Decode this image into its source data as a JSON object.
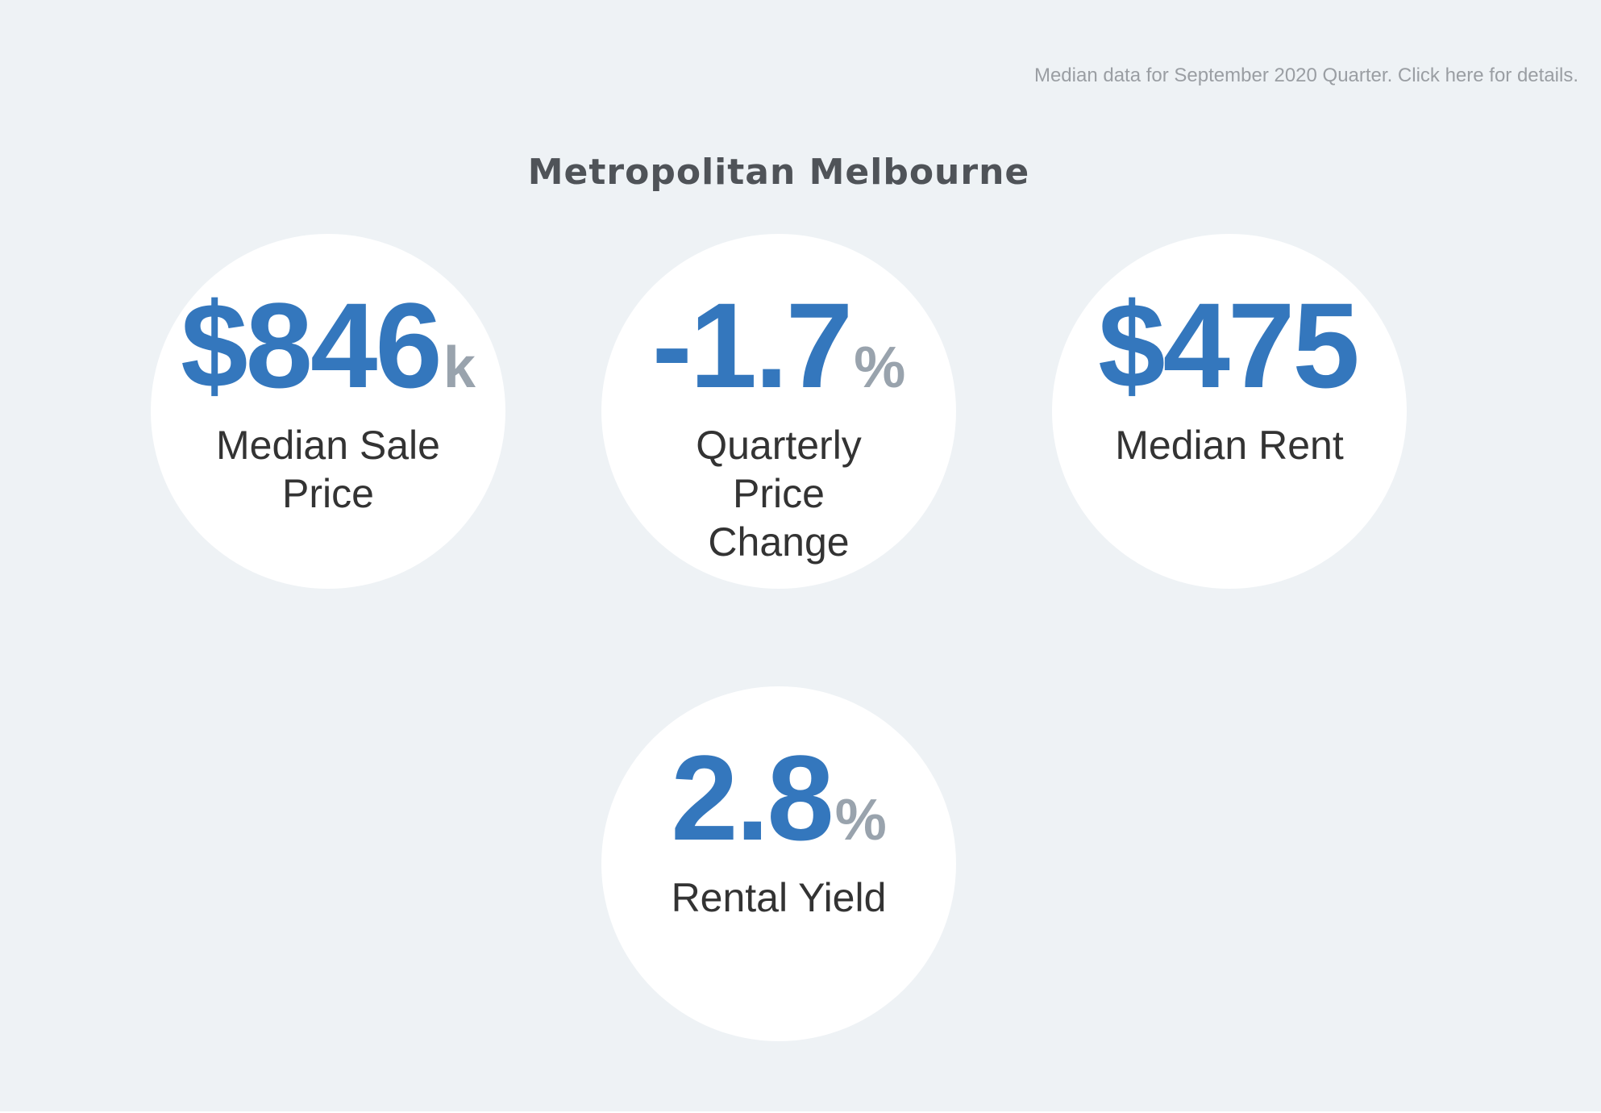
{
  "header": {
    "details_link": "Median data for September 2020 Quarter. Click here for details.",
    "region_title": "Metropolitan Melbourne"
  },
  "stats": {
    "median_sale_price": {
      "value": "$846",
      "unit": "k",
      "label": "Median Sale Price"
    },
    "quarterly_price_change": {
      "value": "-1.7",
      "unit": "%",
      "label": "Quarterly Price Change"
    },
    "median_rent": {
      "value": "$475",
      "unit": "",
      "label": "Median Rent"
    },
    "rental_yield": {
      "value": "2.8",
      "unit": "%",
      "label": "Rental Yield"
    }
  },
  "colors": {
    "background": "#eef2f5",
    "circle": "#ffffff",
    "value_accent": "#3477bd",
    "unit_gray": "#99a3ad",
    "label_text": "#333333",
    "title_text": "#4f5358",
    "link_text": "#9a9ea3"
  }
}
